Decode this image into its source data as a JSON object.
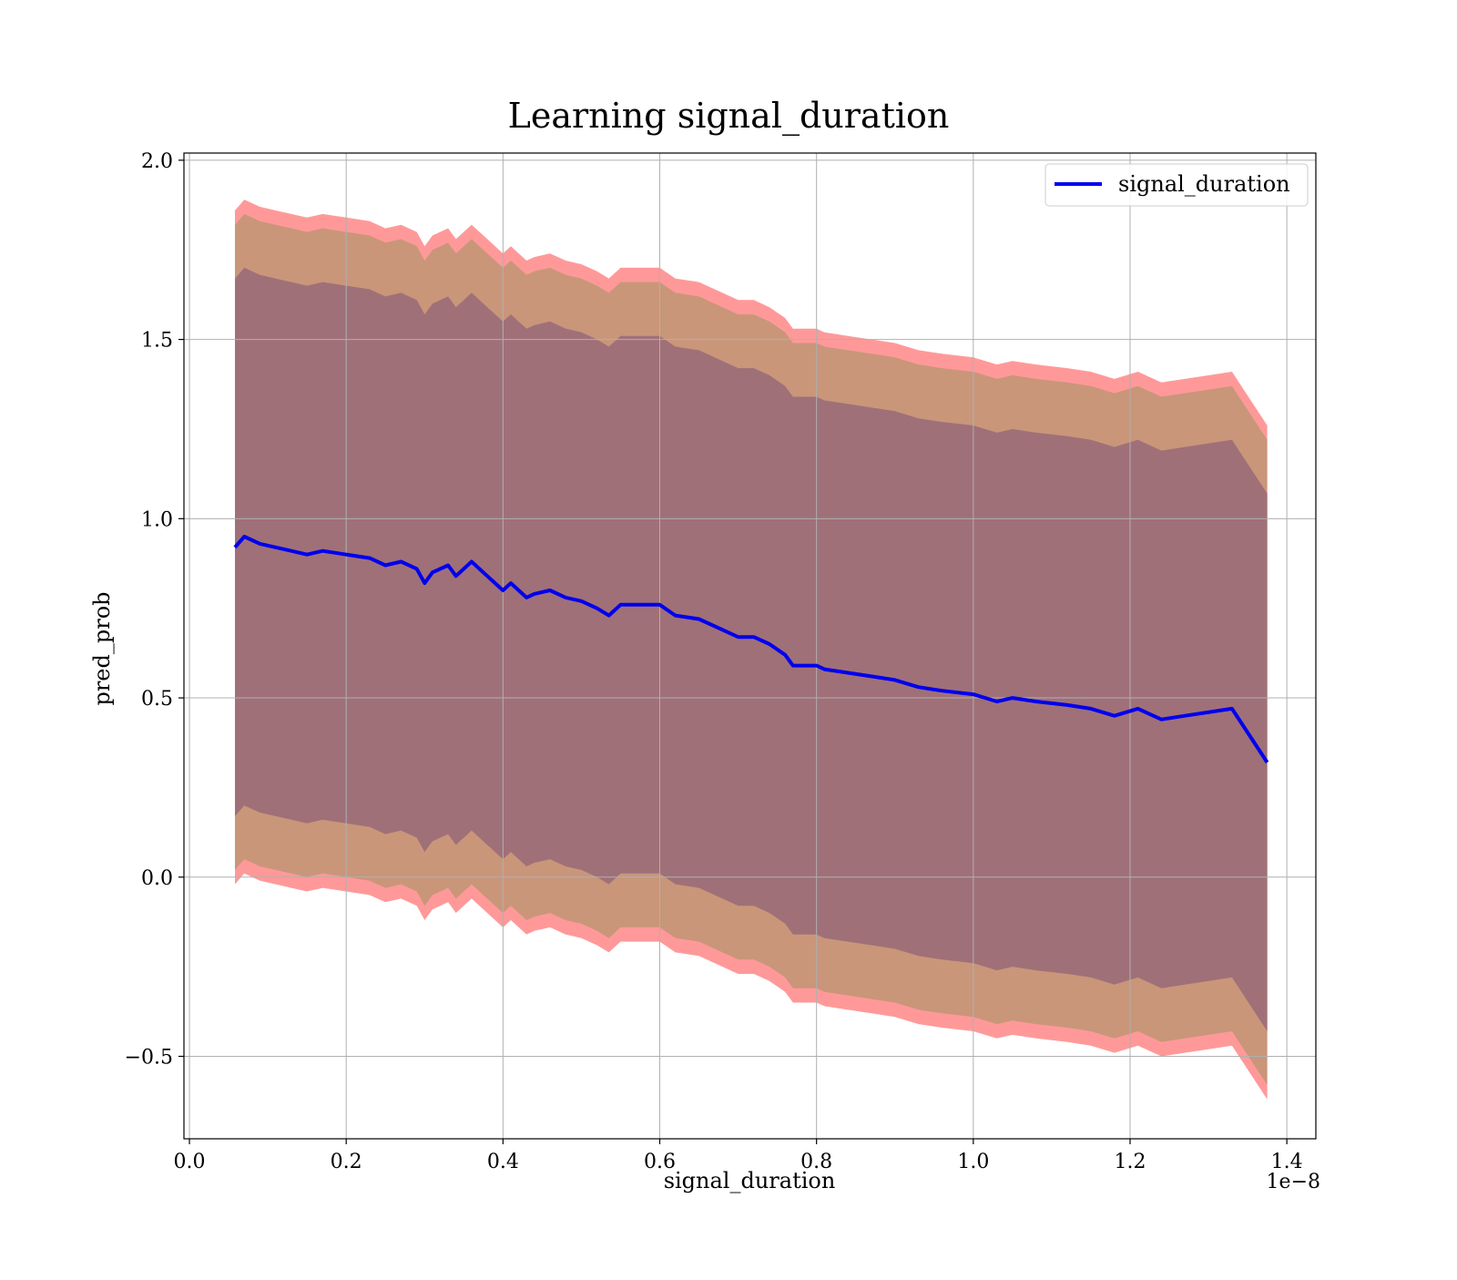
{
  "chart_data": {
    "type": "line",
    "title": "Learning signal_duration",
    "xlabel": "signal_duration",
    "ylabel": "pred_prob",
    "x_offset_label": "1e−8",
    "xlim": [
      -0.007,
      1.437
    ],
    "ylim": [
      -0.73,
      2.02
    ],
    "x_ticks": [
      0.0,
      0.2,
      0.4,
      0.6,
      0.8,
      1.0,
      1.2,
      1.4
    ],
    "x_tick_labels": [
      "0.0",
      "0.2",
      "0.4",
      "0.6",
      "0.8",
      "1.0",
      "1.2",
      "1.4"
    ],
    "y_ticks": [
      -0.5,
      0.0,
      0.5,
      1.0,
      1.5,
      2.0
    ],
    "y_tick_labels": [
      "−0.5",
      "0.0",
      "0.5",
      "1.0",
      "1.5",
      "2.0"
    ],
    "grid": true,
    "legend": {
      "position": "top-right",
      "entries": [
        "signal_duration"
      ]
    },
    "colors": {
      "line": "#0000ee",
      "band_outer": "#ff9999",
      "band_middle": "#c9967a",
      "band_inner": "#a07078",
      "grid": "#b0b0b0"
    },
    "x": [
      0.058,
      0.07,
      0.09,
      0.11,
      0.13,
      0.15,
      0.17,
      0.2,
      0.23,
      0.25,
      0.27,
      0.29,
      0.3,
      0.31,
      0.33,
      0.34,
      0.36,
      0.38,
      0.4,
      0.41,
      0.43,
      0.44,
      0.46,
      0.48,
      0.5,
      0.52,
      0.535,
      0.55,
      0.6,
      0.62,
      0.65,
      0.68,
      0.7,
      0.72,
      0.74,
      0.76,
      0.77,
      0.8,
      0.81,
      0.84,
      0.87,
      0.9,
      0.93,
      0.96,
      1.0,
      1.03,
      1.05,
      1.08,
      1.12,
      1.15,
      1.18,
      1.21,
      1.24,
      1.27,
      1.33,
      1.375
    ],
    "series": [
      {
        "name": "signal_duration",
        "role": "line",
        "values": [
          0.92,
          0.95,
          0.93,
          0.92,
          0.91,
          0.9,
          0.91,
          0.9,
          0.89,
          0.87,
          0.88,
          0.86,
          0.82,
          0.85,
          0.87,
          0.84,
          0.88,
          0.84,
          0.8,
          0.82,
          0.78,
          0.79,
          0.8,
          0.78,
          0.77,
          0.75,
          0.73,
          0.76,
          0.76,
          0.73,
          0.72,
          0.69,
          0.67,
          0.67,
          0.65,
          0.62,
          0.59,
          0.59,
          0.58,
          0.57,
          0.56,
          0.55,
          0.53,
          0.52,
          0.51,
          0.49,
          0.5,
          0.49,
          0.48,
          0.47,
          0.45,
          0.47,
          0.44,
          0.45,
          0.47,
          0.32
        ]
      },
      {
        "name": "",
        "role": "band-outer-upper",
        "values": [
          1.86,
          1.89,
          1.87,
          1.86,
          1.85,
          1.84,
          1.85,
          1.84,
          1.83,
          1.81,
          1.82,
          1.8,
          1.76,
          1.79,
          1.81,
          1.78,
          1.82,
          1.78,
          1.74,
          1.76,
          1.72,
          1.73,
          1.74,
          1.72,
          1.71,
          1.69,
          1.67,
          1.7,
          1.7,
          1.67,
          1.66,
          1.63,
          1.61,
          1.61,
          1.59,
          1.56,
          1.53,
          1.53,
          1.52,
          1.51,
          1.5,
          1.49,
          1.47,
          1.46,
          1.45,
          1.43,
          1.44,
          1.43,
          1.42,
          1.41,
          1.39,
          1.41,
          1.38,
          1.39,
          1.41,
          1.26
        ]
      },
      {
        "name": "",
        "role": "band-middle-upper",
        "values": [
          1.82,
          1.85,
          1.83,
          1.82,
          1.81,
          1.8,
          1.81,
          1.8,
          1.79,
          1.77,
          1.78,
          1.76,
          1.72,
          1.75,
          1.77,
          1.74,
          1.78,
          1.74,
          1.7,
          1.72,
          1.68,
          1.69,
          1.7,
          1.68,
          1.67,
          1.65,
          1.63,
          1.66,
          1.66,
          1.63,
          1.62,
          1.59,
          1.57,
          1.57,
          1.55,
          1.52,
          1.49,
          1.49,
          1.48,
          1.47,
          1.46,
          1.45,
          1.43,
          1.42,
          1.41,
          1.39,
          1.4,
          1.39,
          1.38,
          1.37,
          1.35,
          1.37,
          1.34,
          1.35,
          1.37,
          1.22
        ]
      },
      {
        "name": "",
        "role": "band-inner-upper",
        "values": [
          1.67,
          1.7,
          1.68,
          1.67,
          1.66,
          1.65,
          1.66,
          1.65,
          1.64,
          1.62,
          1.63,
          1.61,
          1.57,
          1.6,
          1.62,
          1.59,
          1.63,
          1.59,
          1.55,
          1.57,
          1.53,
          1.54,
          1.55,
          1.53,
          1.52,
          1.5,
          1.48,
          1.51,
          1.51,
          1.48,
          1.47,
          1.44,
          1.42,
          1.42,
          1.4,
          1.37,
          1.34,
          1.34,
          1.33,
          1.32,
          1.31,
          1.3,
          1.28,
          1.27,
          1.26,
          1.24,
          1.25,
          1.24,
          1.23,
          1.22,
          1.2,
          1.22,
          1.19,
          1.2,
          1.22,
          1.07
        ]
      },
      {
        "name": "",
        "role": "band-inner-lower",
        "values": [
          0.17,
          0.2,
          0.18,
          0.17,
          0.16,
          0.15,
          0.16,
          0.15,
          0.14,
          0.12,
          0.13,
          0.11,
          0.07,
          0.1,
          0.12,
          0.09,
          0.13,
          0.09,
          0.05,
          0.07,
          0.03,
          0.04,
          0.05,
          0.03,
          0.02,
          0.0,
          -0.02,
          0.01,
          0.01,
          -0.02,
          -0.03,
          -0.06,
          -0.08,
          -0.08,
          -0.1,
          -0.13,
          -0.16,
          -0.16,
          -0.17,
          -0.18,
          -0.19,
          -0.2,
          -0.22,
          -0.23,
          -0.24,
          -0.26,
          -0.25,
          -0.26,
          -0.27,
          -0.28,
          -0.3,
          -0.28,
          -0.31,
          -0.3,
          -0.28,
          -0.43
        ]
      },
      {
        "name": "",
        "role": "band-middle-lower",
        "values": [
          0.02,
          0.05,
          0.03,
          0.02,
          0.01,
          0.0,
          0.01,
          0.0,
          -0.01,
          -0.03,
          -0.02,
          -0.04,
          -0.08,
          -0.05,
          -0.03,
          -0.06,
          -0.02,
          -0.06,
          -0.1,
          -0.08,
          -0.12,
          -0.11,
          -0.1,
          -0.12,
          -0.13,
          -0.15,
          -0.17,
          -0.14,
          -0.14,
          -0.17,
          -0.18,
          -0.21,
          -0.23,
          -0.23,
          -0.25,
          -0.28,
          -0.31,
          -0.31,
          -0.32,
          -0.33,
          -0.34,
          -0.35,
          -0.37,
          -0.38,
          -0.39,
          -0.41,
          -0.4,
          -0.41,
          -0.42,
          -0.43,
          -0.45,
          -0.43,
          -0.46,
          -0.45,
          -0.43,
          -0.58
        ]
      },
      {
        "name": "",
        "role": "band-outer-lower",
        "values": [
          -0.02,
          0.01,
          -0.01,
          -0.02,
          -0.03,
          -0.04,
          -0.03,
          -0.04,
          -0.05,
          -0.07,
          -0.06,
          -0.08,
          -0.12,
          -0.09,
          -0.07,
          -0.1,
          -0.06,
          -0.1,
          -0.14,
          -0.12,
          -0.16,
          -0.15,
          -0.14,
          -0.16,
          -0.17,
          -0.19,
          -0.21,
          -0.18,
          -0.18,
          -0.21,
          -0.22,
          -0.25,
          -0.27,
          -0.27,
          -0.29,
          -0.32,
          -0.35,
          -0.35,
          -0.36,
          -0.37,
          -0.38,
          -0.39,
          -0.41,
          -0.42,
          -0.43,
          -0.45,
          -0.44,
          -0.45,
          -0.46,
          -0.47,
          -0.49,
          -0.47,
          -0.5,
          -0.49,
          -0.47,
          -0.62
        ]
      }
    ]
  }
}
